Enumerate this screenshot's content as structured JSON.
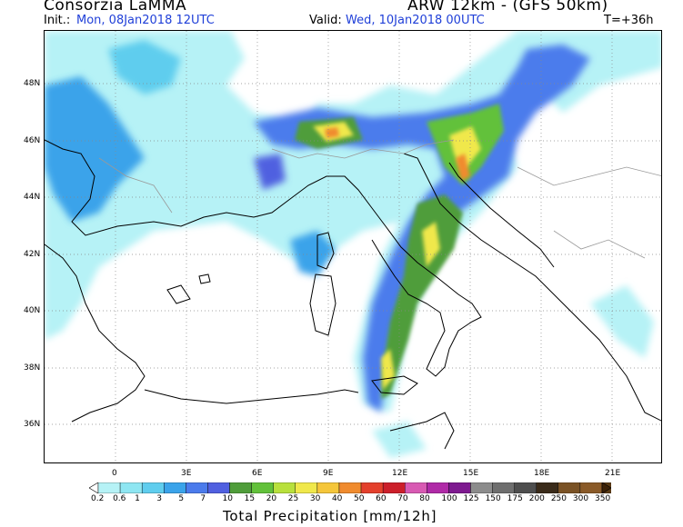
{
  "header": {
    "title_left": "Consorzia LaMMA",
    "title_right": "ARW 12km - (GFS 50km)",
    "init_label": "Init.:",
    "init_value": "Mon, 08Jan2018  12UTC",
    "valid_label": "Valid:",
    "valid_value": "Wed, 10Jan2018  00UTC",
    "forecast_step": "T=+36h"
  },
  "axes": {
    "lat_labels": [
      "48N",
      "46N",
      "44N",
      "42N",
      "40N",
      "38N",
      "36N"
    ],
    "lon_labels": [
      "0",
      "3E",
      "6E",
      "9E",
      "12E",
      "15E",
      "18E",
      "21E"
    ]
  },
  "colorbar": {
    "title": "Total Precipitation [mm/12h]",
    "thresholds": [
      "0.2",
      "0.6",
      "1",
      "3",
      "5",
      "7",
      "10",
      "15",
      "20",
      "25",
      "30",
      "40",
      "50",
      "60",
      "70",
      "80",
      "100",
      "125",
      "150",
      "175",
      "200",
      "250",
      "300",
      "350"
    ],
    "colors": [
      "#b6f2f6",
      "#8ee6f2",
      "#5fcdee",
      "#3aa3ea",
      "#4b7bec",
      "#5060e0",
      "#4f9d3a",
      "#62c13a",
      "#b8e03c",
      "#f0e84b",
      "#f5c63a",
      "#f08b2e",
      "#e4402c",
      "#cc1f2a",
      "#d85ab3",
      "#b02aa7",
      "#7e1a90",
      "#8c8c8c",
      "#6e6e6e",
      "#4e4e4e",
      "#3a2b1a",
      "#7a5225",
      "#8a5a28",
      "#5a3a14",
      "#3c2208"
    ]
  },
  "map": {
    "region": "Western Mediterranean / Italy",
    "grid": "dotted",
    "precip_colors": {
      "light": "#b6f2f6",
      "blue1": "#5fcdee",
      "blue2": "#3aa3ea",
      "blue3": "#4b7bec",
      "blue4": "#5060e0",
      "green1": "#4f9d3a",
      "green2": "#62c13a",
      "yellow": "#f0e84b",
      "orange": "#f08b2e"
    }
  }
}
